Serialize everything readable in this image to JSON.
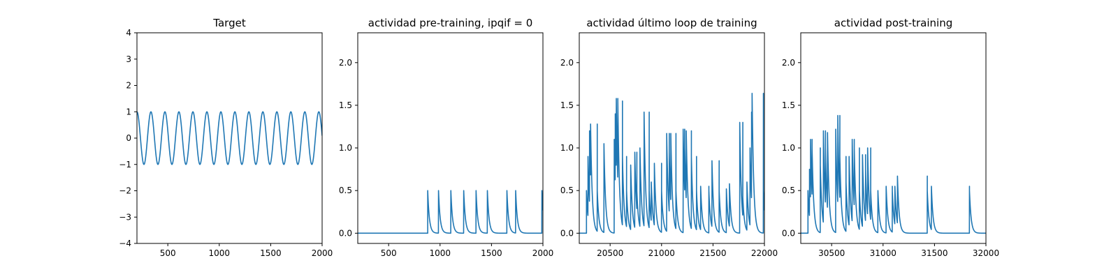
{
  "chart_data": [
    {
      "type": "line",
      "title": "Target",
      "xlim": [
        200,
        2000
      ],
      "ylim": [
        -4,
        4
      ],
      "xticks": [
        500,
        1000,
        1500,
        2000
      ],
      "yticks": [
        -4,
        -3,
        -2,
        -1,
        0,
        1,
        2,
        3,
        4
      ],
      "ytick_labels": [
        "−4",
        "−3",
        "−2",
        "−1",
        "0",
        "1",
        "2",
        "3",
        "4"
      ],
      "series": [
        {
          "kind": "sine",
          "amplitude": 1.0,
          "period": 136,
          "phase_x": 268,
          "x_start": 200,
          "x_end": 2000
        }
      ]
    },
    {
      "type": "line",
      "title": "actividad pre-training, ipqif = 0",
      "xlim": [
        200,
        2000
      ],
      "ylim": [
        -0.12,
        2.35
      ],
      "xticks": [
        500,
        1000,
        1500,
        2000
      ],
      "yticks": [
        0.0,
        0.5,
        1.0,
        1.5,
        2.0
      ],
      "ytick_labels": [
        "0.0",
        "0.5",
        "1.0",
        "1.5",
        "2.0"
      ],
      "series": [
        {
          "kind": "spikes",
          "x_start": 200,
          "x_end": 2000,
          "decay": 16,
          "spike_x": [
            880,
            985,
            1105,
            1230,
            1350,
            1460,
            1650,
            1735,
            1990
          ],
          "spike_y": [
            0.5,
            0.5,
            0.5,
            0.5,
            0.5,
            0.5,
            0.5,
            0.5,
            0.5
          ]
        }
      ]
    },
    {
      "type": "line",
      "title": "actividad último loop de training",
      "xlim": [
        20200,
        22000
      ],
      "ylim": [
        -0.12,
        2.35
      ],
      "xticks": [
        20500,
        21000,
        21500,
        22000
      ],
      "yticks": [
        0.0,
        0.5,
        1.0,
        1.5,
        2.0
      ],
      "ytick_labels": [
        "0.0",
        "0.5",
        "1.0",
        "1.5",
        "2.0"
      ],
      "series": [
        {
          "kind": "spikes",
          "x_start": 20200,
          "x_end": 22000,
          "decay": 16,
          "spike_x": [
            20270,
            20285,
            20300,
            20310,
            20375,
            20440,
            20540,
            20550,
            20560,
            20575,
            20620,
            20660,
            20700,
            20740,
            20760,
            20790,
            20830,
            20880,
            20900,
            20930,
            21000,
            21050,
            21075,
            21090,
            21140,
            21210,
            21225,
            21240,
            21290,
            21340,
            21380,
            21460,
            21490,
            21560,
            21630,
            21660,
            21760,
            21790,
            21830,
            21860,
            21875,
            21880,
            21990
          ],
          "spike_y": [
            0.5,
            0.9,
            1.2,
            1.28,
            0.5,
            1.05,
            1.1,
            1.4,
            1.58,
            1.55,
            0.9,
            0.5,
            0.8,
            0.95,
            0.5,
            1.0,
            1.42,
            0.5,
            0.6,
            0.82,
            0.5,
            1.17,
            0.95,
            1.17,
            0.5,
            1.22,
            1.0,
            1.2,
            0.9,
            0.5,
            0.55,
            0.5,
            0.85,
            0.5,
            0.52,
            0.58,
            1.3,
            0.42,
            0.6,
            1.0,
            1.42,
            1.64,
            0.5
          ]
        }
      ]
    },
    {
      "type": "line",
      "title": "actividad post-training",
      "xlim": [
        30200,
        32000
      ],
      "ylim": [
        -0.12,
        2.35
      ],
      "xticks": [
        30500,
        31000,
        31500,
        32000
      ],
      "yticks": [
        0.0,
        0.5,
        1.0,
        1.5,
        2.0
      ],
      "ytick_labels": [
        "0.0",
        "0.5",
        "1.0",
        "1.5",
        "2.0"
      ],
      "series": [
        {
          "kind": "spikes",
          "x_start": 30200,
          "x_end": 32000,
          "decay": 16,
          "spike_x": [
            30270,
            30285,
            30295,
            30310,
            30390,
            30420,
            30440,
            30460,
            30540,
            30560,
            30580,
            30640,
            30670,
            30700,
            30720,
            30770,
            30800,
            30830,
            30850,
            30880,
            30950,
            31030,
            31090,
            31115,
            31140,
            31430,
            31470,
            31840
          ],
          "spike_y": [
            0.5,
            0.75,
            1.1,
            1.0,
            0.8,
            1.2,
            1.0,
            1.18,
            1.22,
            1.38,
            0.9,
            0.6,
            0.9,
            1.1,
            1.0,
            0.5,
            0.92,
            0.75,
            1.0,
            0.5,
            0.5,
            0.55,
            0.5,
            0.55,
            0.67,
            0.5,
            0.55,
            0.5
          ]
        }
      ]
    }
  ]
}
